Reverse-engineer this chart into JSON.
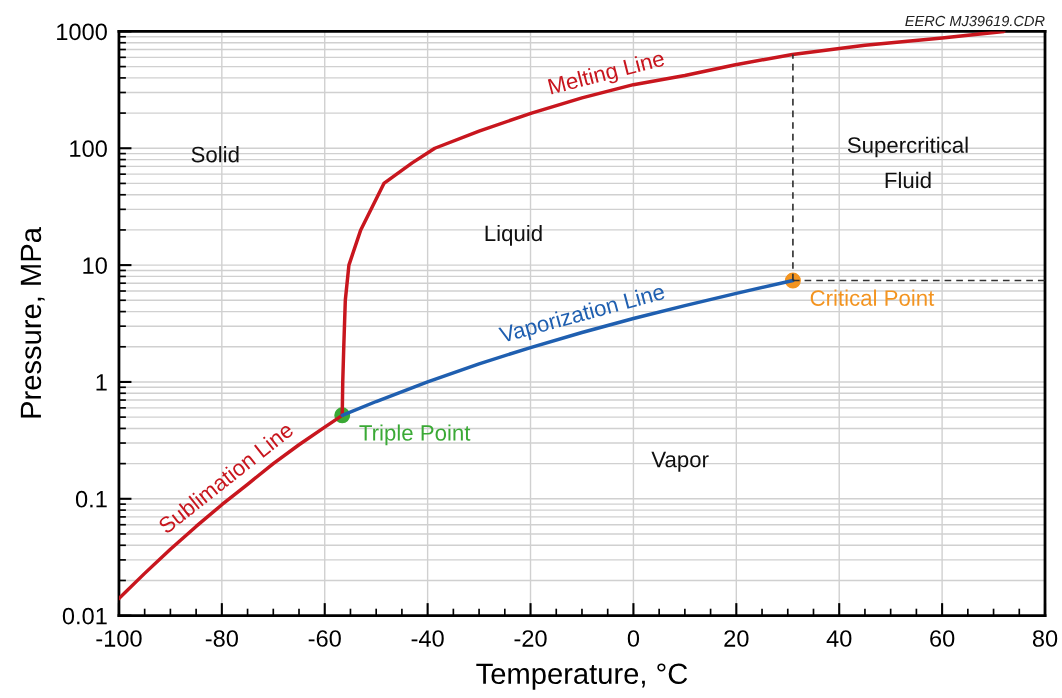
{
  "chart_data": {
    "type": "line",
    "xlabel": "Temperature, °C",
    "ylabel": "Pressure, MPa",
    "xlim": [
      -100,
      80
    ],
    "xticks": [
      -100,
      -80,
      -60,
      -40,
      -20,
      0,
      20,
      40,
      60,
      80
    ],
    "ylim": [
      0.01,
      1000
    ],
    "yticks": [
      0.01,
      0.1,
      1,
      10,
      100,
      1000
    ],
    "log": "y",
    "grid": true,
    "legend": false,
    "series": [
      {
        "name": "Sublimation Line",
        "color": "#c8161e",
        "x": [
          -100,
          -95,
          -90,
          -85,
          -80,
          -75,
          -70,
          -65,
          -60,
          -56.6
        ],
        "values": [
          0.014,
          0.023,
          0.037,
          0.058,
          0.089,
          0.133,
          0.2,
          0.29,
          0.41,
          0.518
        ]
      },
      {
        "name": "Melting Line",
        "color": "#c8161e",
        "x": [
          -56.6,
          -56.5,
          -56.3,
          -56,
          -55.3,
          -53,
          -48.5,
          -43,
          -38.6,
          -30,
          -19.8,
          -10,
          0,
          10,
          19.6,
          30.9,
          45,
          60,
          72
        ],
        "values": [
          0.518,
          1,
          2,
          5,
          10,
          20,
          50,
          75,
          100,
          140,
          200,
          270,
          350,
          420,
          516,
          635,
          760,
          880,
          1000
        ]
      },
      {
        "name": "Vaporization Line",
        "color": "#1f5fb0",
        "x": [
          -56.6,
          -50,
          -40,
          -30,
          -20,
          -10,
          0,
          10,
          20,
          31
        ],
        "values": [
          0.518,
          0.68,
          1.0,
          1.43,
          1.97,
          2.65,
          3.49,
          4.5,
          5.73,
          7.38
        ]
      },
      {
        "type": "line",
        "color": "#333333",
        "line_style": "dashed",
        "x": [
          31,
          31
        ],
        "values": [
          7.38,
          635
        ]
      },
      {
        "type": "line",
        "color": "#333333",
        "line_style": "dashed",
        "x": [
          31,
          80
        ],
        "values": [
          7.38,
          7.38
        ]
      },
      {
        "type": "scatter",
        "name": "Triple Point",
        "color": "#3aa935",
        "marker": "circle",
        "x": [
          -56.6
        ],
        "values": [
          0.518
        ]
      },
      {
        "type": "scatter",
        "name": "Critical Point",
        "color": "#f39420",
        "marker": "circle",
        "x": [
          31
        ],
        "values": [
          7.38
        ]
      }
    ],
    "annotations": [
      "Solid",
      "Liquid",
      "Vapor",
      "Supercritical\nFluid",
      "EERC MJ39619.CDR"
    ]
  }
}
